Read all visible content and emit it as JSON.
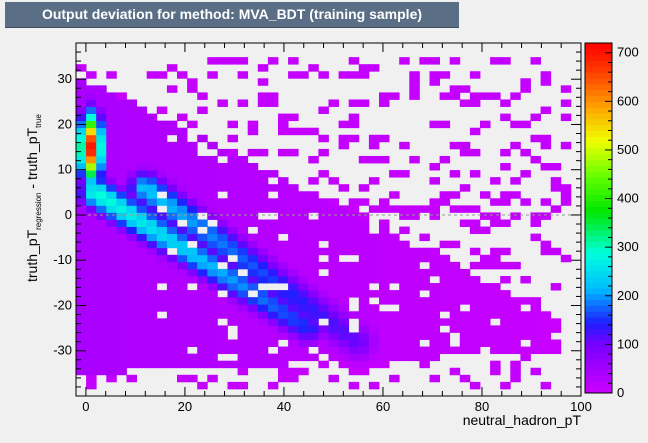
{
  "title": "Output deviation for method: MVA_BDT (training sample)",
  "chart_data": {
    "type": "heatmap",
    "title": "Output deviation for method: MVA_BDT (training sample)",
    "xlabel": "neutral_hadron_pT",
    "ylabel": {
      "main": "truth_pT",
      "sub1": "regression",
      "dash": " - truth_pT",
      "sub2": "true"
    },
    "xlim": [
      -2,
      100
    ],
    "ylim": [
      -40,
      38
    ],
    "x_ticks": [
      0,
      20,
      40,
      60,
      80,
      100
    ],
    "y_ticks": [
      -30,
      -20,
      -10,
      0,
      10,
      20,
      30
    ],
    "colorbar": {
      "min": 0,
      "max": 720,
      "ticks": [
        0,
        100,
        200,
        300,
        400,
        500,
        600,
        700
      ]
    },
    "reference_line": {
      "y": 0,
      "style": "dashed",
      "color": "#999999"
    },
    "bin_width": {
      "x": 2.04,
      "y": 1.56
    },
    "density_ridges": [
      {
        "name": "low_pt_core",
        "x_range": [
          0,
          3
        ],
        "y_range": [
          -10,
          28
        ],
        "peak_value": 700,
        "peak_at": [
          1,
          15
        ]
      },
      {
        "name": "primary_diagonal",
        "from": [
          2,
          5
        ],
        "to": [
          45,
          -25
        ],
        "peak_value": 300
      },
      {
        "name": "secondary_band",
        "from": [
          12,
          6
        ],
        "to": [
          55,
          -28
        ],
        "peak_value": 260
      },
      {
        "name": "diffuse_tail",
        "x_range": [
          0,
          98
        ],
        "y_range": [
          -38,
          35
        ],
        "typical_value": 30
      }
    ]
  }
}
